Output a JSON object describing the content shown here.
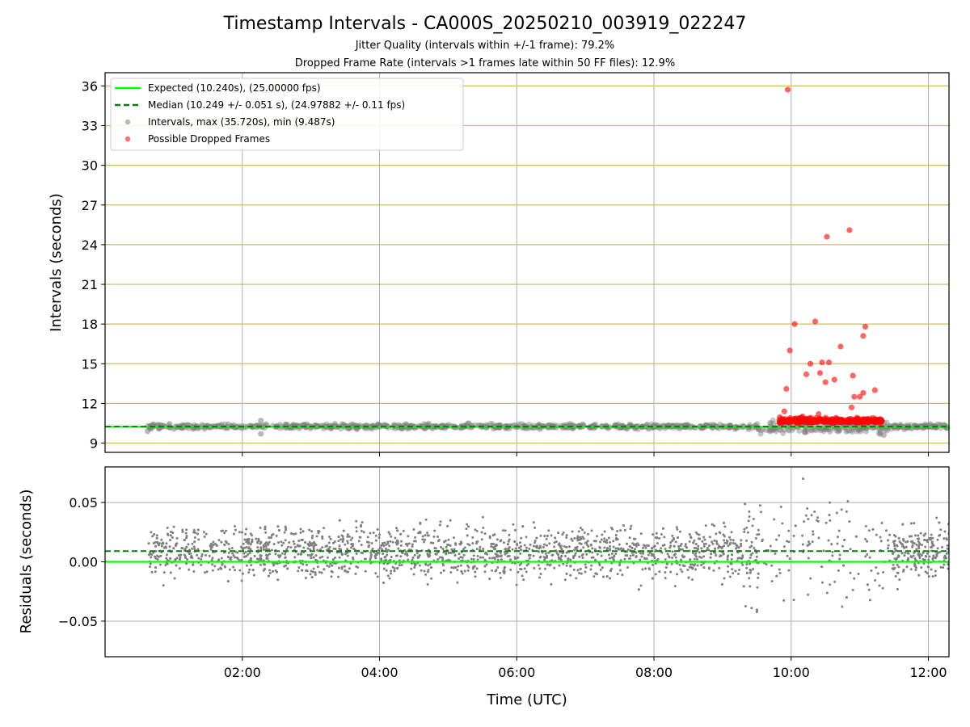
{
  "chart_data": [
    {
      "type": "scatter",
      "title": "Timestamp Intervals - CA000S_20250210_003919_022247",
      "subtitle_lines": [
        "Jitter Quality (intervals within +/-1 frame): 79.2%",
        "Dropped Frame Rate (intervals >1 frames late within 50 FF files): 12.9%"
      ],
      "ylabel": "Intervals (seconds)",
      "xlabel": "",
      "xlim": [
        0.0,
        12.3
      ],
      "ylim": [
        8.3,
        37.0
      ],
      "yticks": [
        9,
        12,
        15,
        18,
        21,
        24,
        27,
        30,
        33,
        36
      ],
      "ytick_labels": [
        "9",
        "12",
        "15",
        "18",
        "21",
        "24",
        "27",
        "30",
        "33",
        "36"
      ],
      "xticks": [
        2,
        4,
        6,
        8,
        10,
        12
      ],
      "grid": true,
      "legend_position": "top-left",
      "legend": [
        "Expected (10.240s), (25.00000 fps)",
        "Median (10.249 +/- 0.051 s), (24.97882 +/- 0.11 fps)",
        "Intervals, max (35.720s), min (9.487s)",
        "Possible Dropped Frames"
      ],
      "expected_line": 10.24,
      "median_line": 10.249,
      "series": [
        {
          "name": "Intervals, max (35.720s), min (9.487s)",
          "color": "#808080",
          "points": [
            [
              0.62,
              9.9
            ],
            [
              0.7,
              10.4
            ],
            [
              0.78,
              10.1
            ],
            [
              0.85,
              10.3
            ],
            [
              0.95,
              10.2
            ],
            [
              1.1,
              10.3
            ],
            [
              1.3,
              10.2
            ],
            [
              1.5,
              10.3
            ],
            [
              1.7,
              10.25
            ],
            [
              1.9,
              10.2
            ],
            [
              2.1,
              10.3
            ],
            [
              2.27,
              10.7
            ],
            [
              2.27,
              9.7
            ],
            [
              2.5,
              10.25
            ],
            [
              2.7,
              10.2
            ],
            [
              2.9,
              10.4
            ],
            [
              3.1,
              10.25
            ],
            [
              3.3,
              10.2
            ],
            [
              3.5,
              10.3
            ],
            [
              3.7,
              10.25
            ],
            [
              3.9,
              10.3
            ],
            [
              4.1,
              10.25
            ],
            [
              4.3,
              10.3
            ],
            [
              4.5,
              10.2
            ],
            [
              4.7,
              10.25
            ],
            [
              4.9,
              10.3
            ],
            [
              5.1,
              10.25
            ],
            [
              5.3,
              10.5
            ],
            [
              5.5,
              10.25
            ],
            [
              5.7,
              10.2
            ],
            [
              5.9,
              10.3
            ],
            [
              6.1,
              10.25
            ],
            [
              6.3,
              10.3
            ],
            [
              6.5,
              10.2
            ],
            [
              6.7,
              10.25
            ],
            [
              6.9,
              10.3
            ],
            [
              7.1,
              10.25
            ],
            [
              7.3,
              10.3
            ],
            [
              7.5,
              10.2
            ],
            [
              7.7,
              10.25
            ],
            [
              7.9,
              10.4
            ],
            [
              8.1,
              10.25
            ],
            [
              8.3,
              10.3
            ],
            [
              8.5,
              10.25
            ],
            [
              8.7,
              10.2
            ],
            [
              8.9,
              10.3
            ],
            [
              9.1,
              10.25
            ],
            [
              9.3,
              10.3
            ],
            [
              9.5,
              10.2
            ],
            [
              9.7,
              9.9
            ],
            [
              9.9,
              10.0
            ],
            [
              10.1,
              10.2
            ],
            [
              10.3,
              9.95
            ],
            [
              10.5,
              10.1
            ],
            [
              10.7,
              10.0
            ],
            [
              10.9,
              10.1
            ],
            [
              11.1,
              10.2
            ],
            [
              11.3,
              9.8
            ],
            [
              11.35,
              9.6
            ],
            [
              11.5,
              10.25
            ],
            [
              11.7,
              10.2
            ],
            [
              11.9,
              10.3
            ],
            [
              12.1,
              10.25
            ],
            [
              12.25,
              10.3
            ]
          ]
        },
        {
          "name": "Possible Dropped Frames",
          "color": "#ff0000",
          "points": [
            [
              9.95,
              35.72
            ],
            [
              10.85,
              25.1
            ],
            [
              10.52,
              24.6
            ],
            [
              10.05,
              18.0
            ],
            [
              10.35,
              18.2
            ],
            [
              11.08,
              17.8
            ],
            [
              11.05,
              17.1
            ],
            [
              10.72,
              16.3
            ],
            [
              9.98,
              16.0
            ],
            [
              10.45,
              15.1
            ],
            [
              10.28,
              15.0
            ],
            [
              10.55,
              15.1
            ],
            [
              10.22,
              14.2
            ],
            [
              10.42,
              14.3
            ],
            [
              10.5,
              13.6
            ],
            [
              10.63,
              13.8
            ],
            [
              10.9,
              14.1
            ],
            [
              9.93,
              13.1
            ],
            [
              10.92,
              12.5
            ],
            [
              11.0,
              12.5
            ],
            [
              11.05,
              12.8
            ],
            [
              11.22,
              13.0
            ],
            [
              10.88,
              11.7
            ],
            [
              10.4,
              11.2
            ],
            [
              10.15,
              10.9
            ],
            [
              9.9,
              11.4
            ],
            [
              10.0,
              10.7
            ],
            [
              10.25,
              10.6
            ],
            [
              10.5,
              10.7
            ],
            [
              10.7,
              10.8
            ],
            [
              10.95,
              10.7
            ],
            [
              11.15,
              10.7
            ],
            [
              11.25,
              10.6
            ],
            [
              9.85,
              10.4
            ],
            [
              10.1,
              10.5
            ],
            [
              10.6,
              10.5
            ],
            [
              10.8,
              10.6
            ],
            [
              11.05,
              10.5
            ],
            [
              11.3,
              10.4
            ]
          ]
        }
      ]
    },
    {
      "type": "scatter",
      "ylabel": "Residuals (seconds)",
      "xlabel": "Time (UTC)",
      "xlim": [
        0.0,
        12.3
      ],
      "ylim": [
        -0.08,
        0.08
      ],
      "yticks": [
        -0.05,
        0.0,
        0.05
      ],
      "ytick_labels": [
        "−0.05",
        "0.00",
        "0.05"
      ],
      "xticks": [
        2,
        4,
        6,
        8,
        10,
        12
      ],
      "xtick_labels": [
        "02:00",
        "04:00",
        "06:00",
        "08:00",
        "10:00",
        "12:00"
      ],
      "grid": true,
      "expected_line": 0.0,
      "median_line": 0.009,
      "series": [
        {
          "name": "",
          "color": "#808080",
          "x_range": [
            0.62,
            12.3
          ],
          "y_center": 0.009,
          "y_spread": 0.025
        }
      ]
    }
  ],
  "colors": {
    "expected": "#00ff00",
    "median": "#008000",
    "intervals": "#808080",
    "dropped": "#ff0000",
    "hgrid_top": "#d4b86a",
    "grid": "#b0b0b0"
  }
}
